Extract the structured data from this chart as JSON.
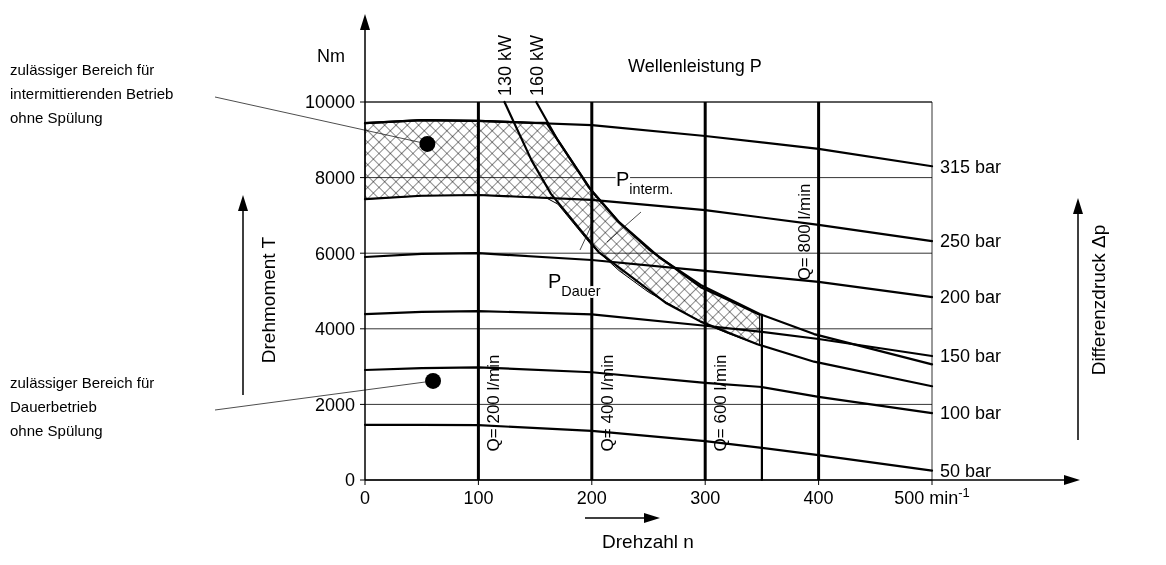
{
  "chart_data": {
    "type": "line",
    "xlabel": "Drehzahl n",
    "ylabel": "Drehmoment T",
    "annotations": [
      "Nm",
      "Wellenleistung P",
      "P$_{interm.}$",
      "P$_{Dauer}$",
      "zulässiger Bereich für\nintermittierenden Betrieb\nohne Spülung",
      "zulässiger Bereich für\nDauerbetrieb\nohne Spülung",
      "Differenzdruck Δp",
      "Q= 200 l/min",
      "Q= 400 l/min",
      "Q= 600 l/min",
      "Q= 800 l/min"
    ],
    "xlim": [
      0,
      500
    ],
    "ylim": [
      0,
      10000
    ],
    "xticks": [
      0,
      100,
      200,
      300,
      400,
      {
        "value": 500,
        "label": "500 min$^{-1}$"
      }
    ],
    "yticks": [
      0,
      2000,
      4000,
      6000,
      8000,
      10000
    ],
    "grid": true,
    "legend": false,
    "line_style": "solid",
    "series": [
      {
        "type": "scatter",
        "marker": "circle",
        "color": "#000000",
        "x": [
          55,
          60
        ],
        "values": [
          8890,
          2620
        ]
      },
      {
        "color": "#000000",
        "x": [
          0,
          50,
          100,
          150,
          160,
          170,
          200,
          224,
          250,
          296,
          320,
          348
        ],
        "values": [
          9440,
          9520,
          9500,
          9450,
          9450,
          8990,
          7640,
          6820,
          6110,
          5100,
          4770,
          4370
        ],
        "lower": [
          7430,
          7520,
          7540,
          7480,
          7460,
          7300,
          6200,
          5540,
          4970,
          4190,
          3880,
          3570
        ],
        "upper": [
          9440,
          9520,
          9500,
          9450,
          9450,
          8990,
          7640,
          6820,
          6110,
          5100,
          4770,
          4370
        ]
      },
      {
        "name": "315 bar",
        "color": "#000000",
        "x": [
          0,
          50,
          100,
          200,
          300,
          400,
          500
        ],
        "values": [
          9440,
          9520,
          9500,
          9390,
          9100,
          8760,
          8300
        ]
      },
      {
        "name": "250 bar",
        "color": "#000000",
        "x": [
          0,
          50,
          100,
          200,
          300,
          400,
          500
        ],
        "values": [
          7430,
          7520,
          7540,
          7410,
          7140,
          6750,
          6320
        ]
      },
      {
        "name": "200 bar",
        "color": "#000000",
        "x": [
          0,
          50,
          100,
          200,
          300,
          400,
          500
        ],
        "values": [
          5900,
          5980,
          6000,
          5820,
          5530,
          5240,
          4840
        ]
      },
      {
        "name": "150 bar",
        "color": "#000000",
        "x": [
          0,
          50,
          100,
          200,
          300,
          350,
          400,
          500
        ],
        "values": [
          4390,
          4450,
          4470,
          4380,
          4080,
          3920,
          3730,
          3280
        ]
      },
      {
        "name": "100 bar",
        "color": "#000000",
        "x": [
          0,
          50,
          100,
          200,
          300,
          350,
          400,
          500
        ],
        "values": [
          2910,
          2960,
          2980,
          2850,
          2570,
          2460,
          2200,
          1770
        ]
      },
      {
        "name": "50 bar",
        "color": "#000000",
        "x": [
          0,
          50,
          100,
          200,
          300,
          350,
          400,
          500
        ],
        "values": [
          1460,
          1460,
          1450,
          1300,
          1030,
          850,
          660,
          250
        ]
      },
      {
        "name": "130 kW",
        "color": "#000000",
        "x": [
          123,
          147,
          164,
          206,
          265,
          296,
          346,
          396,
          500
        ],
        "values": [
          10000,
          8450,
          7570,
          6030,
          4690,
          4190,
          3590,
          3130,
          2480
        ]
      },
      {
        "name": "160 kW",
        "color": "#000000",
        "x": [
          151,
          170,
          197,
          224,
          260,
          296,
          348,
          396,
          500
        ],
        "values": [
          10000,
          8990,
          7760,
          6820,
          5880,
          5160,
          4390,
          3860,
          3060
        ]
      },
      {
        "color": "#000000",
        "x": [
          350,
          350
        ],
        "values": [
          0,
          4370
        ]
      }
    ]
  }
}
